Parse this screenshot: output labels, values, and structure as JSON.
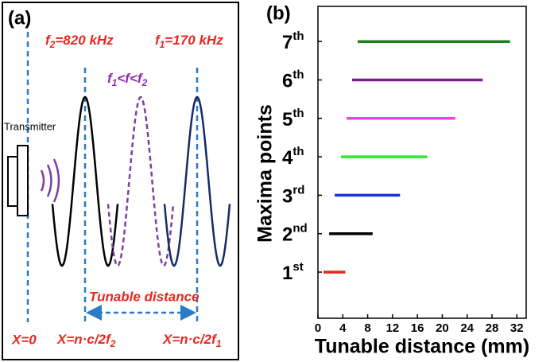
{
  "diagram": {
    "panel_label": "(a)",
    "f2_label": "f2=820 kHz",
    "f1_label": "f1=170 kHz",
    "f_label": "f1<f<f2",
    "transmitter": "Transmitter",
    "tunable": "Tunable distance",
    "x0": "X=0",
    "x2": "X=n·c/2f2",
    "x1": "X=n·c/2f1"
  },
  "chart_data": {
    "type": "range_bar",
    "panel_label": "(b)",
    "ylabel": "Maxima points",
    "xlabel": "Tunable distance (mm)",
    "categories": [
      "1st",
      "2nd",
      "3rd",
      "4th",
      "5th",
      "6th",
      "7th"
    ],
    "values": [
      [
        0.9,
        4.4
      ],
      [
        1.8,
        8.8
      ],
      [
        2.7,
        13.2
      ],
      [
        3.7,
        17.6
      ],
      [
        4.6,
        22.1
      ],
      [
        5.5,
        26.5
      ],
      [
        6.4,
        30.9
      ]
    ],
    "colors": [
      "#e8261e",
      "#000000",
      "#1f30d8",
      "#33e633",
      "#ee44ee",
      "#7b1f8c",
      "#1e801e"
    ],
    "xlim": [
      0,
      33.5
    ],
    "xticks": [
      0,
      4,
      8,
      12,
      16,
      20,
      24,
      28,
      32
    ]
  }
}
